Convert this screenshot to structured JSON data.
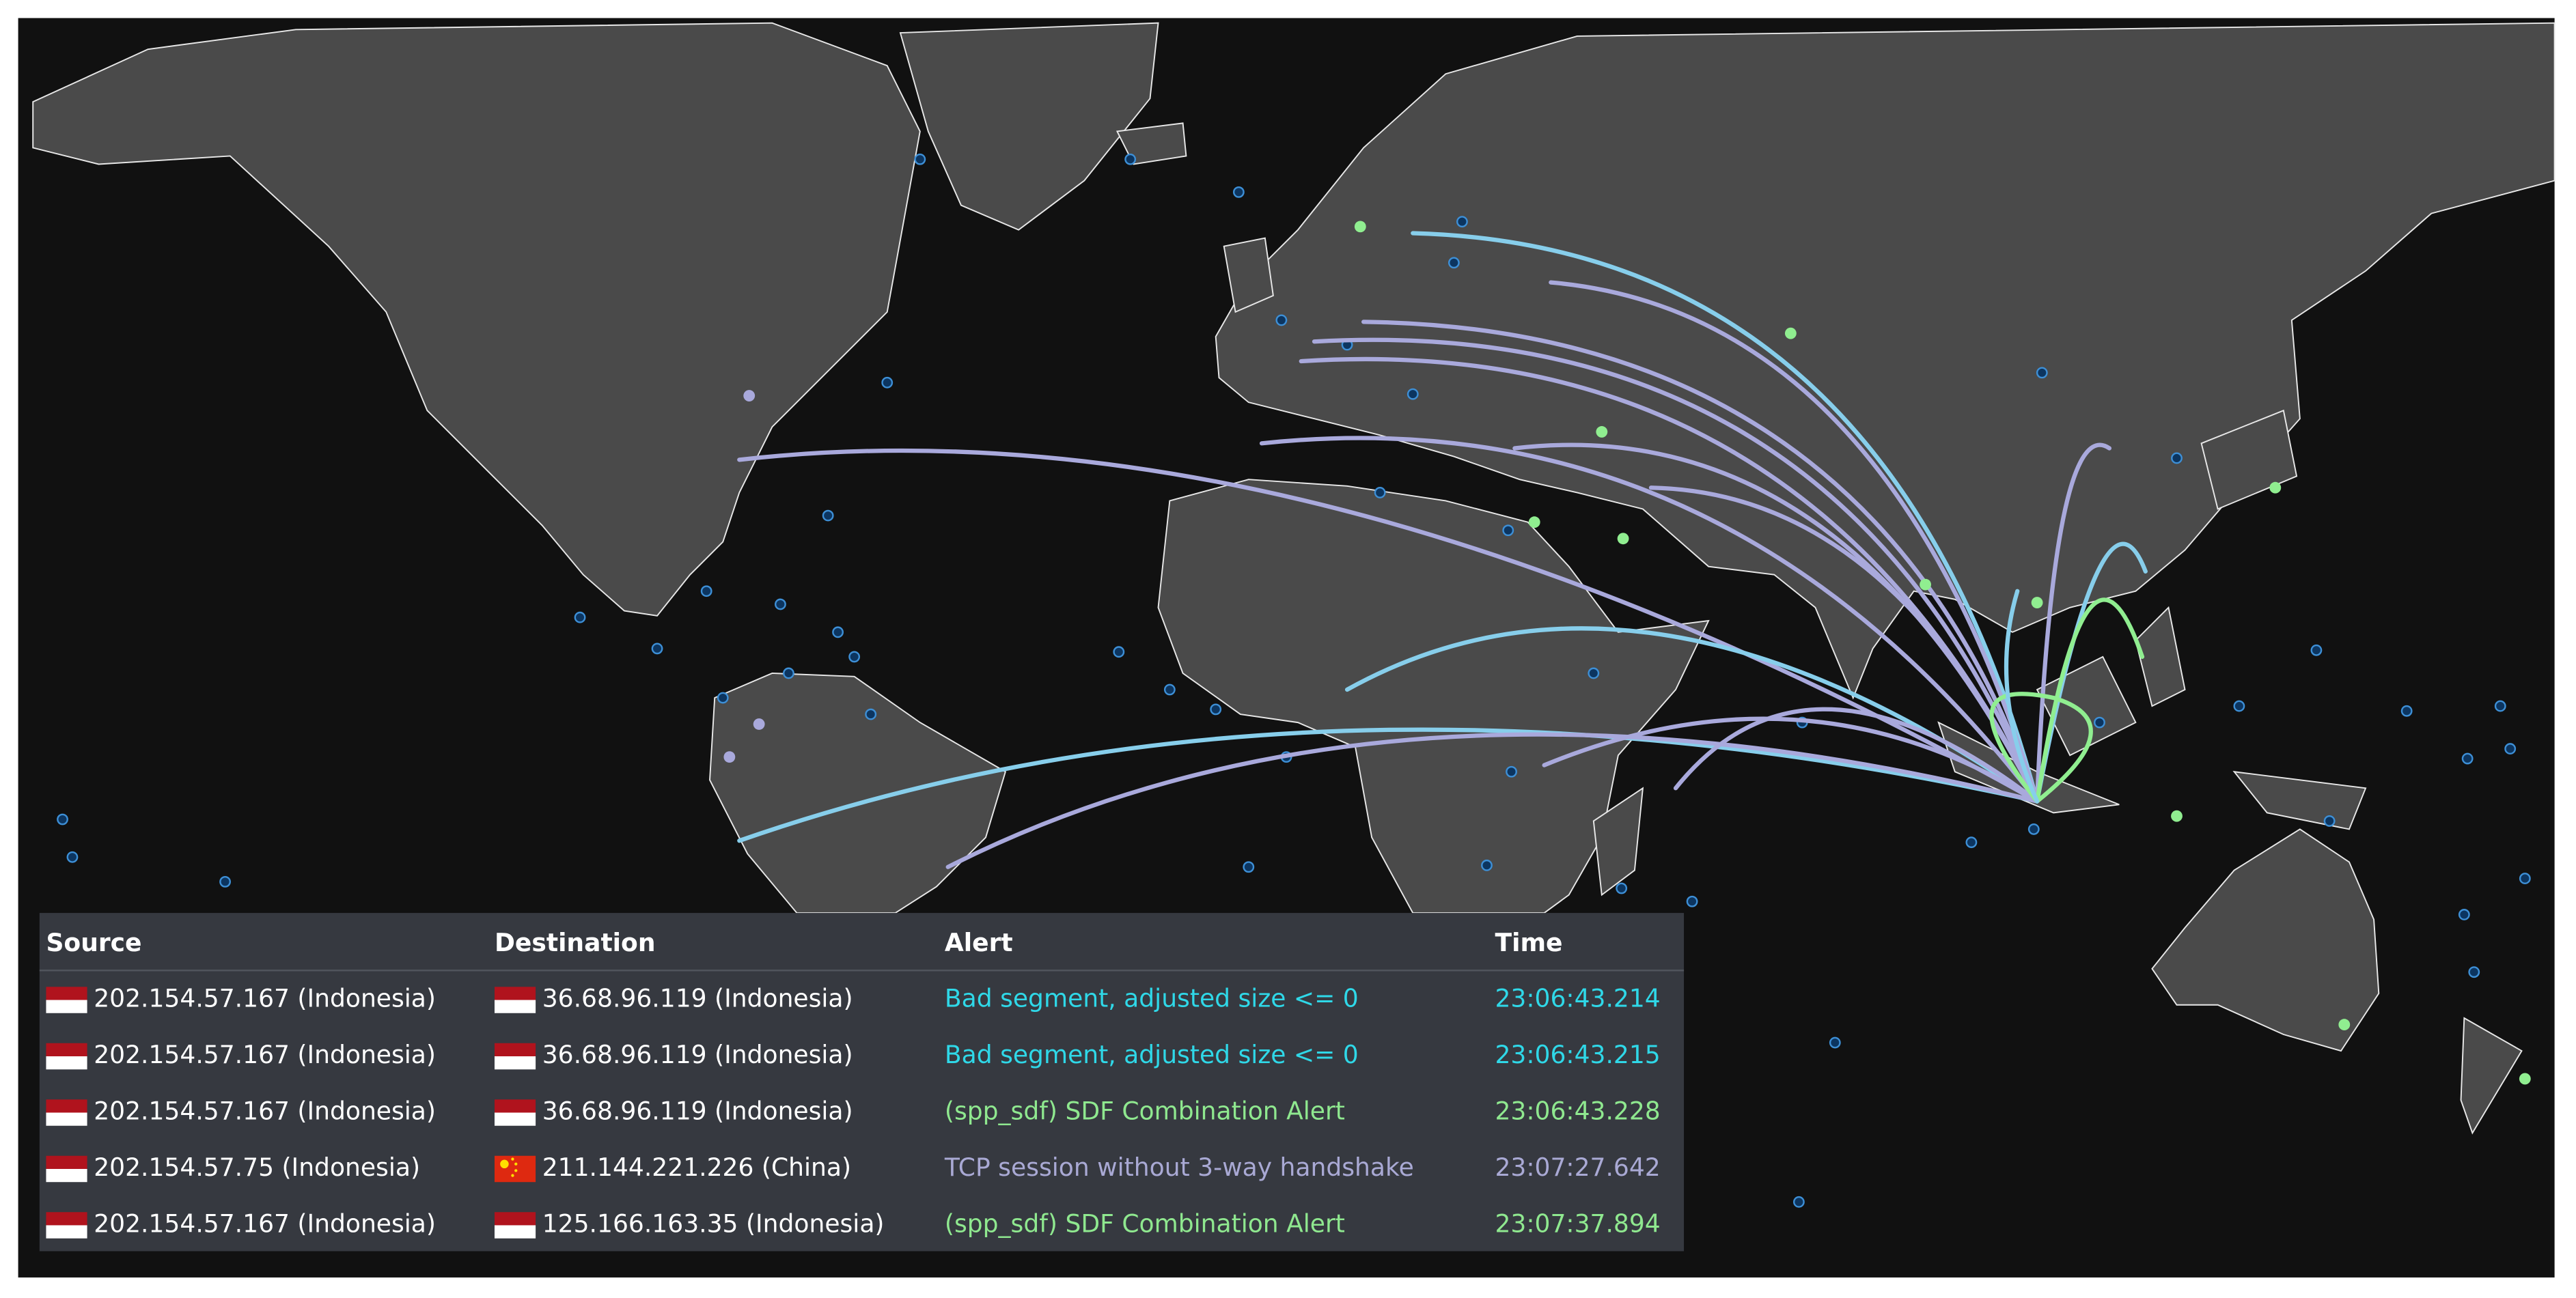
{
  "table": {
    "columns": [
      "Source",
      "Destination",
      "Alert",
      "Time"
    ],
    "rows": [
      [
        "202.154.57.167 (Indonesia)",
        "36.68.96.119 (Indonesia)",
        "Bad segment, adjusted size <= 0",
        "23:06:43.214"
      ],
      [
        "202.154.57.167 (Indonesia)",
        "36.68.96.119 (Indonesia)",
        "Bad segment, adjusted size <= 0",
        "23:06:43.215"
      ],
      [
        "202.154.57.167 (Indonesia)",
        "36.68.96.119 (Indonesia)",
        "(spp_sdf) SDF Combination Alert",
        "23:06:43.228"
      ],
      [
        "202.154.57.75 (Indonesia)",
        "211.144.221.226 (China)",
        "TCP session without 3-way handshake",
        "23:07:27.642"
      ],
      [
        "202.154.57.167 (Indonesia)",
        "125.166.163.35 (Indonesia)",
        "(spp_sdf) SDF Combination Alert",
        "23:07:37.894"
      ]
    ]
  }
}
